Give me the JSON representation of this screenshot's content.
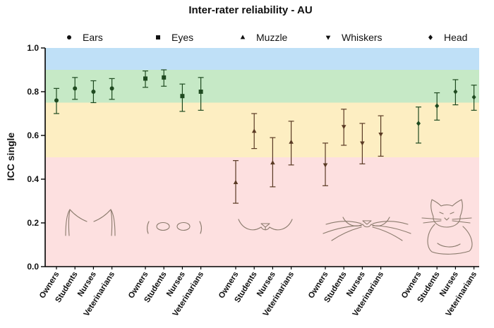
{
  "chart_data": {
    "type": "scatter",
    "title": "Inter-rater reliability - AU",
    "ylabel": "ICC single",
    "ylim": [
      0.0,
      1.0
    ],
    "yticks": [
      "0.0",
      "0.2",
      "0.4",
      "0.6",
      "0.8",
      "1.0"
    ],
    "raters": [
      "Owners",
      "Students",
      "Nurses",
      "Veterinarians"
    ],
    "bands": [
      {
        "from": 0.0,
        "to": 0.5,
        "color": "#fde0e0"
      },
      {
        "from": 0.5,
        "to": 0.75,
        "color": "#fdeec2"
      },
      {
        "from": 0.75,
        "to": 0.9,
        "color": "#c6e9c6"
      },
      {
        "from": 0.9,
        "to": 1.0,
        "color": "#bfe0f7"
      }
    ],
    "series": [
      {
        "name": "Ears",
        "marker": "circle",
        "color": "#1f4a20",
        "values": [
          0.76,
          0.815,
          0.8,
          0.815
        ],
        "lower": [
          0.7,
          0.765,
          0.75,
          0.765
        ],
        "upper": [
          0.815,
          0.865,
          0.85,
          0.86
        ]
      },
      {
        "name": "Eyes",
        "marker": "square",
        "color": "#1f4a20",
        "values": [
          0.86,
          0.865,
          0.78,
          0.8
        ],
        "lower": [
          0.82,
          0.825,
          0.71,
          0.715
        ],
        "upper": [
          0.895,
          0.9,
          0.835,
          0.865
        ]
      },
      {
        "name": "Muzzle",
        "marker": "triangle-up",
        "color": "#5a3a24",
        "values": [
          0.385,
          0.62,
          0.475,
          0.57
        ],
        "lower": [
          0.29,
          0.54,
          0.365,
          0.465
        ],
        "upper": [
          0.485,
          0.7,
          0.59,
          0.665
        ]
      },
      {
        "name": "Whiskers",
        "marker": "triangle-down",
        "color": "#5a3a24",
        "values": [
          0.465,
          0.64,
          0.565,
          0.605
        ],
        "lower": [
          0.37,
          0.555,
          0.47,
          0.505
        ],
        "upper": [
          0.565,
          0.72,
          0.655,
          0.69
        ]
      },
      {
        "name": "Head",
        "marker": "diamond",
        "color": "#1f4a20",
        "values": [
          0.655,
          0.735,
          0.8,
          0.775
        ],
        "lower": [
          0.565,
          0.67,
          0.74,
          0.715
        ],
        "upper": [
          0.73,
          0.795,
          0.855,
          0.83
        ]
      }
    ]
  }
}
